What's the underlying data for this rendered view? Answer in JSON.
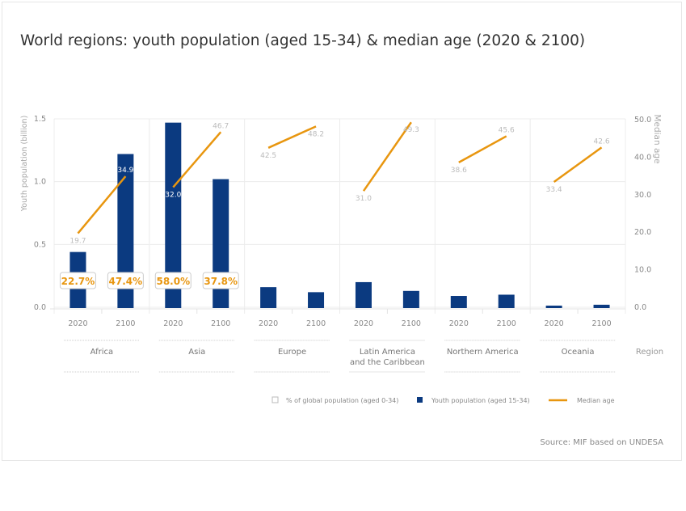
{
  "chart_data": {
    "type": "bar",
    "title": "World regions: youth population (aged 15-34) & median age (2020 & 2100)",
    "source": "Source: MIF based on UNDESA",
    "y_left": {
      "label": "Youth population (billion)",
      "range": [
        0,
        1.5
      ],
      "ticks": [
        "0.0",
        "0.5",
        "1.0",
        "1.5"
      ]
    },
    "y_right": {
      "label": "Median age",
      "range": [
        0,
        50
      ],
      "ticks": [
        "0.0",
        "10.0",
        "20.0",
        "30.0",
        "40.0",
        "50.0"
      ]
    },
    "xlabel": "Region",
    "years": [
      "2020",
      "2100"
    ],
    "regions": [
      {
        "name": [
          "Africa"
        ],
        "youth": [
          0.44,
          1.22
        ],
        "median_age": [
          19.7,
          34.9
        ],
        "median_labels": [
          "19.7",
          "34.9"
        ],
        "pct_global": [
          "22.7%",
          "47.4%"
        ]
      },
      {
        "name": [
          "Asia"
        ],
        "youth": [
          1.47,
          1.02
        ],
        "median_age": [
          32.0,
          46.7
        ],
        "median_labels": [
          "32.0",
          "46.7"
        ],
        "pct_global": [
          "58.0%",
          "37.8%"
        ]
      },
      {
        "name": [
          "Europe"
        ],
        "youth": [
          0.16,
          0.12
        ],
        "median_age": [
          42.5,
          48.2
        ],
        "median_labels": [
          "42.5",
          "48.2"
        ],
        "pct_global": [
          null,
          null
        ]
      },
      {
        "name": [
          "Latin America",
          "and the Caribbean"
        ],
        "youth": [
          0.2,
          0.13
        ],
        "median_age": [
          31.0,
          49.3
        ],
        "median_labels": [
          "31.0",
          "49.3"
        ],
        "pct_global": [
          null,
          null
        ]
      },
      {
        "name": [
          "Northern America"
        ],
        "youth": [
          0.09,
          0.1
        ],
        "median_age": [
          38.6,
          45.6
        ],
        "median_labels": [
          "38.6",
          "45.6"
        ],
        "pct_global": [
          null,
          null
        ]
      },
      {
        "name": [
          "Oceania"
        ],
        "youth": [
          0.013,
          0.02
        ],
        "median_age": [
          33.4,
          42.6
        ],
        "median_labels": [
          "33.4",
          "42.6"
        ],
        "pct_global": [
          null,
          null
        ]
      }
    ],
    "legend": [
      {
        "label": "% of global population (aged 0-34)",
        "kind": "box"
      },
      {
        "label": "Youth population (aged 15-34)",
        "kind": "bar"
      },
      {
        "label": "Median age",
        "kind": "line"
      }
    ],
    "legend_position": "bottom",
    "grid": true,
    "colors": {
      "bar": "#0b3a80",
      "line": "#e8960f",
      "pct_text": "#e8960f"
    }
  }
}
